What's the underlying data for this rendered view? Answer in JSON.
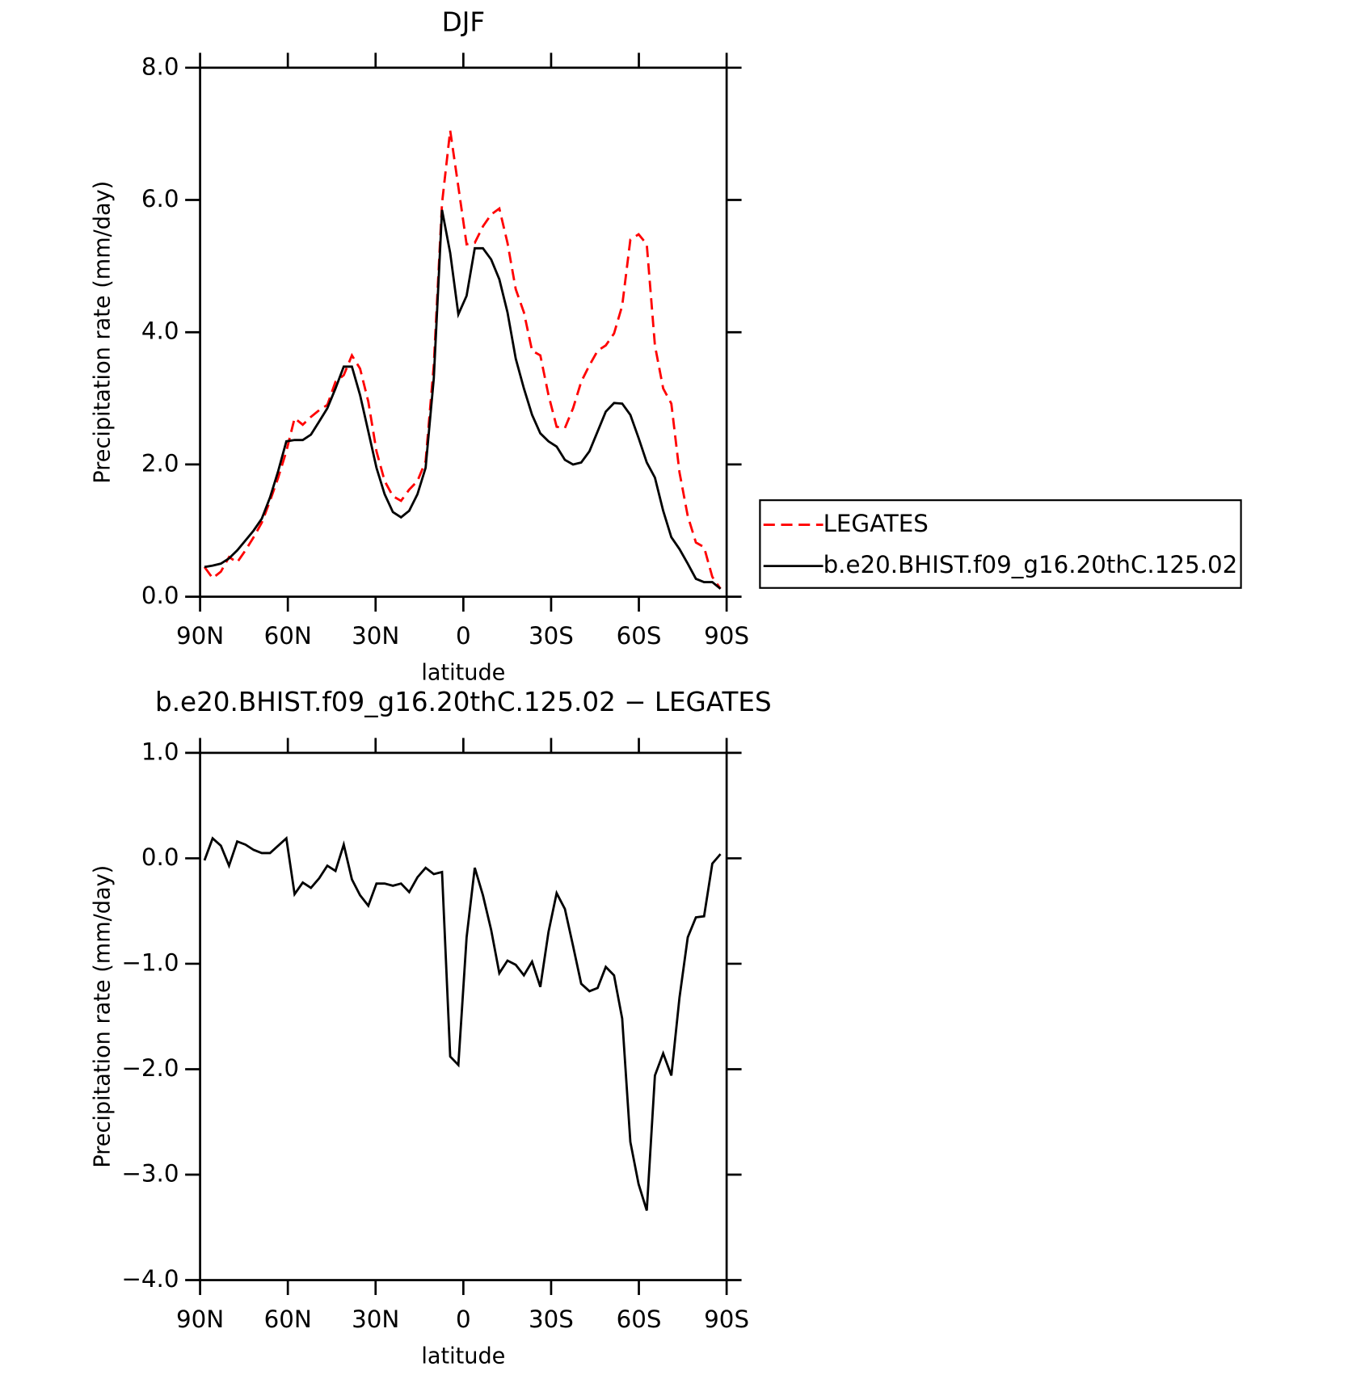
{
  "chart_data": [
    {
      "type": "line",
      "title": "DJF",
      "xlabel": "latitude",
      "ylabel": "Precipitation rate (mm/day)",
      "x": [
        88.5,
        85.7,
        82.9,
        80.1,
        77.3,
        74.5,
        71.7,
        68.9,
        66.1,
        63.3,
        60.5,
        57.7,
        54.9,
        52.1,
        49.3,
        46.5,
        43.7,
        40.9,
        38.1,
        35.3,
        32.5,
        29.7,
        26.9,
        24.1,
        21.3,
        18.5,
        15.7,
        12.9,
        10.1,
        7.3,
        4.5,
        1.7,
        -1.1,
        -3.9,
        -6.7,
        -9.5,
        -12.3,
        -15.1,
        -17.9,
        -20.7,
        -23.5,
        -26.3,
        -29.1,
        -31.9,
        -34.7,
        -37.5,
        -40.3,
        -43.1,
        -45.9,
        -48.7,
        -51.5,
        -54.3,
        -57.1,
        -59.9,
        -62.7,
        -65.5,
        -68.3,
        -71.1,
        -73.9,
        -76.7,
        -79.5,
        -82.3,
        -85.1,
        -87.9
      ],
      "xlim": [
        90,
        -90
      ],
      "xticks": [
        {
          "value": 90,
          "label": "90N"
        },
        {
          "value": 60,
          "label": "60N"
        },
        {
          "value": 30,
          "label": "30N"
        },
        0,
        {
          "value": -30,
          "label": "30S"
        },
        {
          "value": -60,
          "label": "60S"
        },
        {
          "value": -90,
          "label": "90S"
        }
      ],
      "ylim": [
        0,
        8
      ],
      "yticks": [
        {
          "value": 0,
          "label": "0.0"
        },
        {
          "value": 2,
          "label": "2.0"
        },
        {
          "value": 4,
          "label": "4.0"
        },
        {
          "value": 6,
          "label": "6.0"
        },
        {
          "value": 8,
          "label": "8.0"
        }
      ],
      "legend": "right",
      "series": [
        {
          "name": "LEGATES",
          "color": "#ff0000",
          "line_style": "dashed",
          "values": [
            0.45,
            0.28,
            0.38,
            0.6,
            0.52,
            0.7,
            0.9,
            1.12,
            1.45,
            1.8,
            2.2,
            2.7,
            2.6,
            2.72,
            2.82,
            2.9,
            3.25,
            3.35,
            3.65,
            3.45,
            2.95,
            2.2,
            1.75,
            1.52,
            1.45,
            1.62,
            1.75,
            2.05,
            3.5,
            5.95,
            7.05,
            6.2,
            5.33,
            5.35,
            5.6,
            5.78,
            5.87,
            5.35,
            4.65,
            4.3,
            3.72,
            3.65,
            3.05,
            2.57,
            2.55,
            2.85,
            3.25,
            3.5,
            3.72,
            3.8,
            3.98,
            4.4,
            5.4,
            5.48,
            5.33,
            3.8,
            3.15,
            2.92,
            1.88,
            1.22,
            0.82,
            0.75,
            0.3,
            0.12
          ]
        },
        {
          "name": "b.e20.BHIST.f09_g16.20thC.125.02",
          "color": "#000000",
          "line_style": "solid",
          "values": [
            0.45,
            0.47,
            0.5,
            0.58,
            0.7,
            0.85,
            1.0,
            1.18,
            1.5,
            1.9,
            2.35,
            2.37,
            2.37,
            2.45,
            2.65,
            2.85,
            3.15,
            3.48,
            3.48,
            3.05,
            2.5,
            1.95,
            1.55,
            1.28,
            1.2,
            1.3,
            1.55,
            1.95,
            3.3,
            5.85,
            5.2,
            4.27,
            4.55,
            5.27,
            5.27,
            5.1,
            4.8,
            4.3,
            3.6,
            3.15,
            2.75,
            2.47,
            2.35,
            2.27,
            2.07,
            2.0,
            2.03,
            2.2,
            2.5,
            2.8,
            2.93,
            2.92,
            2.75,
            2.4,
            2.03,
            1.8,
            1.3,
            0.9,
            0.72,
            0.5,
            0.27,
            0.22,
            0.22,
            0.12
          ]
        }
      ]
    },
    {
      "type": "line",
      "title": "b.e20.BHIST.f09_g16.20thC.125.02 − LEGATES",
      "xlabel": "latitude",
      "ylabel": "Precipitation rate (mm/day)",
      "x": [
        88.5,
        85.7,
        82.9,
        80.1,
        77.3,
        74.5,
        71.7,
        68.9,
        66.1,
        63.3,
        60.5,
        57.7,
        54.9,
        52.1,
        49.3,
        46.5,
        43.7,
        40.9,
        38.1,
        35.3,
        32.5,
        29.7,
        26.9,
        24.1,
        21.3,
        18.5,
        15.7,
        12.9,
        10.1,
        7.3,
        4.5,
        1.7,
        -1.1,
        -3.9,
        -6.7,
        -9.5,
        -12.3,
        -15.1,
        -17.9,
        -20.7,
        -23.5,
        -26.3,
        -29.1,
        -31.9,
        -34.7,
        -37.5,
        -40.3,
        -43.1,
        -45.9,
        -48.7,
        -51.5,
        -54.3,
        -57.1,
        -59.9,
        -62.7,
        -65.5,
        -68.3,
        -71.1,
        -73.9,
        -76.7,
        -79.5,
        -82.3,
        -85.1,
        -87.9
      ],
      "xlim": [
        90,
        -90
      ],
      "xticks": [
        {
          "value": 90,
          "label": "90N"
        },
        {
          "value": 60,
          "label": "60N"
        },
        {
          "value": 30,
          "label": "30N"
        },
        0,
        {
          "value": -30,
          "label": "30S"
        },
        {
          "value": -60,
          "label": "60S"
        },
        {
          "value": -90,
          "label": "90S"
        }
      ],
      "ylim": [
        -4,
        1
      ],
      "yticks": [
        {
          "value": -4,
          "label": "−4.0"
        },
        {
          "value": -3,
          "label": "−3.0"
        },
        {
          "value": -2,
          "label": "−2.0"
        },
        {
          "value": -1,
          "label": "−1.0"
        },
        {
          "value": 0,
          "label": "0.0"
        },
        {
          "value": 1,
          "label": "1.0"
        }
      ],
      "color": "#000000",
      "values": [
        -0.02,
        0.19,
        0.12,
        -0.07,
        0.16,
        0.13,
        0.08,
        0.05,
        0.05,
        0.12,
        0.19,
        -0.34,
        -0.23,
        -0.28,
        -0.19,
        -0.07,
        -0.12,
        0.13,
        -0.2,
        -0.35,
        -0.45,
        -0.24,
        -0.24,
        -0.26,
        -0.24,
        -0.32,
        -0.18,
        -0.09,
        -0.15,
        -0.13,
        -1.88,
        -1.96,
        -0.75,
        -0.09,
        -0.35,
        -0.68,
        -1.09,
        -0.97,
        -1.01,
        -1.11,
        -0.98,
        -1.22,
        -0.7,
        -0.33,
        -0.48,
        -0.83,
        -1.19,
        -1.26,
        -1.23,
        -1.03,
        -1.11,
        -1.52,
        -2.69,
        -3.09,
        -3.34,
        -2.06,
        -1.85,
        -2.06,
        -1.32,
        -0.75,
        -0.56,
        -0.55,
        -0.05,
        0.04
      ]
    }
  ]
}
